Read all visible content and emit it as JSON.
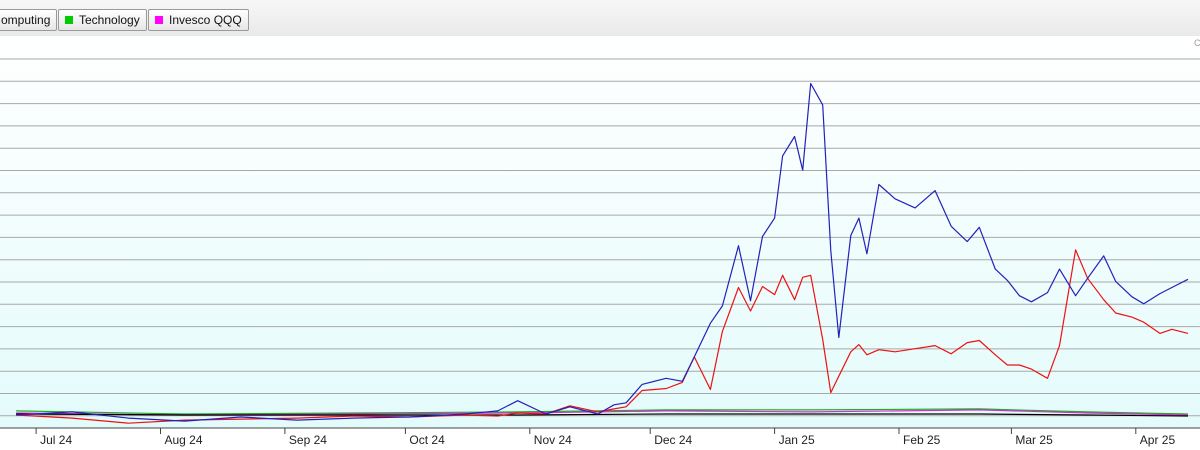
{
  "legend": {
    "items": [
      {
        "label": "omputing",
        "color": null
      },
      {
        "label": "Technology",
        "color": "#00cc00"
      },
      {
        "label": "Invesco QQQ",
        "color": "#ff00ff"
      }
    ]
  },
  "corner_mark": "C",
  "colors": {
    "blue_series": "#2222bb",
    "red_series": "#ee1111",
    "green_series": "#22aa22",
    "magenta_series": "#cc33cc",
    "black_series": "#000000",
    "plot_background_top": "#ffffff",
    "plot_background_bottom": "#e4fbfb",
    "gridline": "#a8a8a8"
  },
  "chart_data": {
    "type": "line",
    "title": "",
    "xlabel": "",
    "ylabel": "",
    "grid": true,
    "x_tick_labels": [
      "Jul 24",
      "Aug 24",
      "Sep 24",
      "Oct 24",
      "Nov 24",
      "Dec 24",
      "Jan 25",
      "Feb 25",
      "Mar 25",
      "Apr 25"
    ],
    "x_range": [
      "2024-06-26",
      "2025-04-14"
    ],
    "series": [
      {
        "name": "",
        "color": "#2222bb",
        "points": [
          [
            "2024-06-26",
            0
          ],
          [
            "2024-07-10",
            0.3
          ],
          [
            "2024-07-24",
            -0.3
          ],
          [
            "2024-08-07",
            -0.6
          ],
          [
            "2024-08-21",
            -0.2
          ],
          [
            "2024-09-04",
            -0.5
          ],
          [
            "2024-09-18",
            -0.3
          ],
          [
            "2024-10-02",
            -0.2
          ],
          [
            "2024-10-16",
            0.1
          ],
          [
            "2024-10-24",
            0.4
          ],
          [
            "2024-10-29",
            1.4
          ],
          [
            "2024-11-05",
            0.1
          ],
          [
            "2024-11-11",
            0.8
          ],
          [
            "2024-11-18",
            0.1
          ],
          [
            "2024-11-22",
            1.0
          ],
          [
            "2024-11-25",
            1.2
          ],
          [
            "2024-11-29",
            3.0
          ],
          [
            "2024-12-05",
            3.6
          ],
          [
            "2024-12-09",
            3.3
          ],
          [
            "2024-12-12",
            5.7
          ],
          [
            "2024-12-16",
            9.0
          ],
          [
            "2024-12-19",
            10.7
          ],
          [
            "2024-12-23",
            16.6
          ],
          [
            "2024-12-26",
            11.2
          ],
          [
            "2024-12-29",
            17.5
          ],
          [
            "2025-01-01",
            19.3
          ],
          [
            "2025-01-03",
            25.4
          ],
          [
            "2025-01-06",
            27.3
          ],
          [
            "2025-01-08",
            24.0
          ],
          [
            "2025-01-10",
            32.5
          ],
          [
            "2025-01-13",
            30.4
          ],
          [
            "2025-01-15",
            16.1
          ],
          [
            "2025-01-17",
            7.6
          ],
          [
            "2025-01-20",
            17.6
          ],
          [
            "2025-01-22",
            19.3
          ],
          [
            "2025-01-24",
            15.8
          ],
          [
            "2025-01-27",
            22.6
          ],
          [
            "2025-01-31",
            21.2
          ],
          [
            "2025-02-05",
            20.3
          ],
          [
            "2025-02-10",
            22.0
          ],
          [
            "2025-02-14",
            18.5
          ],
          [
            "2025-02-18",
            17.0
          ],
          [
            "2025-02-21",
            18.4
          ],
          [
            "2025-02-25",
            14.3
          ],
          [
            "2025-02-28",
            13.2
          ],
          [
            "2025-03-03",
            11.7
          ],
          [
            "2025-03-06",
            11.1
          ],
          [
            "2025-03-10",
            12.0
          ],
          [
            "2025-03-13",
            14.3
          ],
          [
            "2025-03-17",
            11.7
          ],
          [
            "2025-03-20",
            13.4
          ],
          [
            "2025-03-24",
            15.6
          ],
          [
            "2025-03-27",
            13.1
          ],
          [
            "2025-03-31",
            11.6
          ],
          [
            "2025-04-03",
            10.9
          ],
          [
            "2025-04-07",
            11.9
          ],
          [
            "2025-04-10",
            12.5
          ],
          [
            "2025-04-14",
            13.3
          ]
        ]
      },
      {
        "name": "",
        "color": "#ee1111",
        "points": [
          [
            "2024-06-26",
            0
          ],
          [
            "2024-07-10",
            -0.3
          ],
          [
            "2024-07-24",
            -0.8
          ],
          [
            "2024-08-07",
            -0.5
          ],
          [
            "2024-08-21",
            -0.4
          ],
          [
            "2024-09-04",
            -0.3
          ],
          [
            "2024-09-18",
            -0.1
          ],
          [
            "2024-10-02",
            -0.2
          ],
          [
            "2024-10-16",
            0.0
          ],
          [
            "2024-10-24",
            -0.1
          ],
          [
            "2024-10-29",
            0.2
          ],
          [
            "2024-11-05",
            0.1
          ],
          [
            "2024-11-11",
            0.9
          ],
          [
            "2024-11-18",
            0.3
          ],
          [
            "2024-11-22",
            0.6
          ],
          [
            "2024-11-25",
            0.8
          ],
          [
            "2024-11-29",
            2.4
          ],
          [
            "2024-12-05",
            2.6
          ],
          [
            "2024-12-09",
            3.2
          ],
          [
            "2024-12-12",
            5.7
          ],
          [
            "2024-12-16",
            2.5
          ],
          [
            "2024-12-19",
            8.2
          ],
          [
            "2024-12-23",
            12.5
          ],
          [
            "2024-12-26",
            10.2
          ],
          [
            "2024-12-29",
            12.6
          ],
          [
            "2025-01-01",
            11.8
          ],
          [
            "2025-01-03",
            13.7
          ],
          [
            "2025-01-06",
            11.3
          ],
          [
            "2025-01-08",
            13.5
          ],
          [
            "2025-01-10",
            13.7
          ],
          [
            "2025-01-13",
            7.4
          ],
          [
            "2025-01-15",
            2.2
          ],
          [
            "2025-01-17",
            3.8
          ],
          [
            "2025-01-20",
            6.2
          ],
          [
            "2025-01-22",
            6.9
          ],
          [
            "2025-01-24",
            5.9
          ],
          [
            "2025-01-27",
            6.4
          ],
          [
            "2025-01-31",
            6.2
          ],
          [
            "2025-02-05",
            6.5
          ],
          [
            "2025-02-10",
            6.8
          ],
          [
            "2025-02-14",
            6.0
          ],
          [
            "2025-02-18",
            7.1
          ],
          [
            "2025-02-21",
            7.3
          ],
          [
            "2025-02-25",
            5.9
          ],
          [
            "2025-02-28",
            4.9
          ],
          [
            "2025-03-03",
            4.9
          ],
          [
            "2025-03-06",
            4.5
          ],
          [
            "2025-03-10",
            3.6
          ],
          [
            "2025-03-13",
            6.8
          ],
          [
            "2025-03-17",
            16.2
          ],
          [
            "2025-03-20",
            13.4
          ],
          [
            "2025-03-24",
            11.3
          ],
          [
            "2025-03-27",
            10.0
          ],
          [
            "2025-03-31",
            9.6
          ],
          [
            "2025-04-03",
            9.1
          ],
          [
            "2025-04-07",
            8.0
          ],
          [
            "2025-04-10",
            8.4
          ],
          [
            "2025-04-14",
            8.0
          ]
        ]
      },
      {
        "name": "Technology",
        "color": "#22aa22",
        "points": [
          [
            "2024-06-26",
            0.4
          ],
          [
            "2024-08-07",
            0.1
          ],
          [
            "2024-09-18",
            0.2
          ],
          [
            "2024-10-29",
            0.3
          ],
          [
            "2024-12-05",
            0.5
          ],
          [
            "2025-01-10",
            0.5
          ],
          [
            "2025-02-21",
            0.6
          ],
          [
            "2025-03-20",
            0.3
          ],
          [
            "2025-04-14",
            0.1
          ]
        ]
      },
      {
        "name": "Invesco QQQ",
        "color": "#cc33cc",
        "points": [
          [
            "2024-06-26",
            0.2
          ],
          [
            "2024-08-07",
            0.0
          ],
          [
            "2024-09-18",
            0.1
          ],
          [
            "2024-10-29",
            0.2
          ],
          [
            "2024-12-05",
            0.4
          ],
          [
            "2025-01-10",
            0.3
          ],
          [
            "2025-02-21",
            0.5
          ],
          [
            "2025-03-20",
            0.2
          ],
          [
            "2025-04-14",
            0.0
          ]
        ]
      },
      {
        "name": "",
        "color": "#000000",
        "points": [
          [
            "2024-06-26",
            0.1
          ],
          [
            "2024-08-07",
            0.0
          ],
          [
            "2024-09-18",
            0.0
          ],
          [
            "2024-10-29",
            0.0
          ],
          [
            "2024-12-05",
            0.1
          ],
          [
            "2025-01-10",
            0.1
          ],
          [
            "2025-02-21",
            0.1
          ],
          [
            "2025-03-20",
            0.0
          ],
          [
            "2025-04-14",
            -0.1
          ]
        ]
      }
    ]
  }
}
